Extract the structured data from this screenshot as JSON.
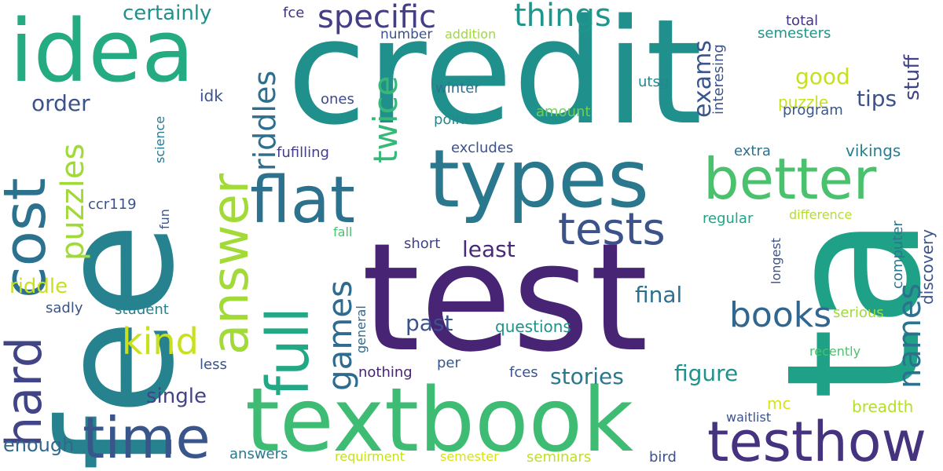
{
  "words": {
    "credit": "credit",
    "fee": "fee",
    "test": "test",
    "ta": "ta",
    "textbook": "textbook",
    "idea": "idea",
    "types": "types",
    "better": "better",
    "testhow": "testhow",
    "time": "time",
    "cost": "cost",
    "hard": "hard",
    "answer": "answer",
    "full": "full",
    "flat": "flat",
    "tests": "tests",
    "specific": "specific",
    "things": "things",
    "riddles": "riddles",
    "twice": "twice",
    "puzzles": "puzzles",
    "kind": "kind",
    "games": "games",
    "books": "books",
    "names": "names",
    "exams": "exams",
    "good": "good",
    "tips": "tips",
    "stuff": "stuff",
    "order": "order",
    "certainly": "certainly",
    "riddle": "riddle",
    "least": "least",
    "final": "final",
    "past": "past",
    "figure": "figure",
    "stories": "stories",
    "single": "single",
    "enough": "enough",
    "discovery": "discovery",
    "computer": "computer",
    "vikings": "vikings",
    "breadth": "breadth",
    "puzzle": "puzzle",
    "interesing": "interesing",
    "program": "program",
    "semesters": "semesters",
    "total": "total",
    "fce": "fce",
    "number": "number",
    "addition": "addition",
    "winter": "winter",
    "ones": "ones",
    "idk": "idk",
    "amount": "amount",
    "utsg": "utsg",
    "points": "points",
    "excludes": "excludes",
    "fufilling": "fufilling",
    "extra": "extra",
    "science": "science",
    "ccr119": "ccr119",
    "fun": "fun",
    "regular": "regular",
    "difference": "difference",
    "fall": "fall",
    "short": "short",
    "longest": "longest",
    "general": "general",
    "questions": "questions",
    "sadly": "sadly",
    "student": "student",
    "serious": "serious",
    "recently": "recently",
    "less": "less",
    "nothing": "nothing",
    "per": "per",
    "fces": "fces",
    "mc": "mc",
    "waitlist": "waitlist",
    "answers": "answers",
    "requirment": "requirment",
    "semester": "semester",
    "seminars": "seminars",
    "bird": "bird"
  }
}
